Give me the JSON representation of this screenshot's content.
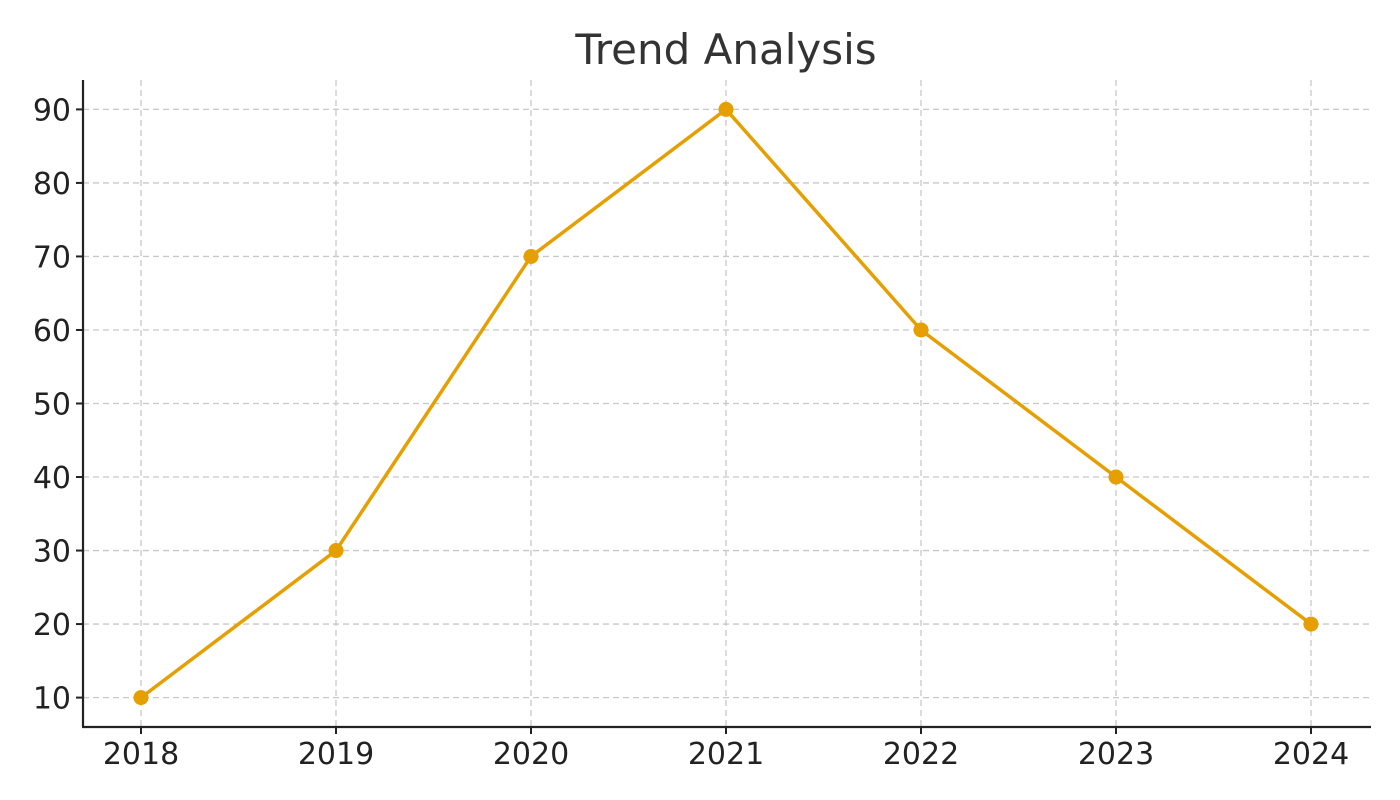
{
  "chart_data": {
    "type": "line",
    "title": "Trend Analysis",
    "xlabel": "",
    "ylabel": "",
    "x": [
      "2018",
      "2019",
      "2020",
      "2021",
      "2022",
      "2023",
      "2024"
    ],
    "y_ticks": [
      10,
      20,
      30,
      40,
      50,
      60,
      70,
      80,
      90
    ],
    "ylim": [
      6,
      94
    ],
    "grid": true,
    "legend": "none",
    "series": [
      {
        "values": [
          10,
          30,
          70,
          90,
          60,
          40,
          20
        ],
        "color": "#E69F00",
        "marker": "circle"
      }
    ]
  }
}
